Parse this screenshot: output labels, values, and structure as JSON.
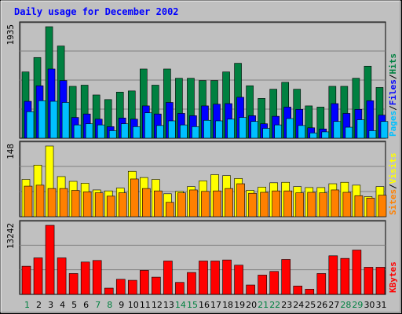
{
  "chart_data": {
    "type": "bar",
    "title": "Daily usage for December 2002",
    "categories": [
      "1",
      "2",
      "3",
      "4",
      "5",
      "6",
      "7",
      "8",
      "9",
      "10",
      "11",
      "12",
      "13",
      "14",
      "15",
      "16",
      "17",
      "18",
      "19",
      "20",
      "21",
      "22",
      "23",
      "24",
      "25",
      "26",
      "27",
      "28",
      "29",
      "30",
      "31"
    ],
    "weekend_days": [
      "1",
      "7",
      "8",
      "14",
      "15",
      "21",
      "22",
      "28",
      "29"
    ],
    "panels": [
      {
        "ymax_label": "1935",
        "ymax": 1935,
        "series": [
          {
            "name": "Hits",
            "color": "#008040",
            "values": [
              1150,
              1400,
              1935,
              1600,
              900,
              920,
              750,
              670,
              800,
              820,
              1200,
              920,
              1200,
              1040,
              1040,
              1000,
              1000,
              1150,
              1300,
              910,
              690,
              850,
              970,
              850,
              560,
              540,
              900,
              900,
              1040,
              1250,
              880
            ]
          },
          {
            "name": "Files",
            "color": "#0000ff",
            "values": [
              640,
              910,
              1200,
              1000,
              360,
              420,
              330,
              200,
              350,
              330,
              560,
              420,
              620,
              430,
              390,
              560,
              590,
              600,
              710,
              390,
              250,
              380,
              540,
              500,
              180,
              160,
              600,
              430,
              500,
              650,
              400
            ]
          },
          {
            "name": "Pages",
            "color": "#00c0ff",
            "values": [
              460,
              650,
              640,
              620,
              230,
              250,
              230,
              130,
              250,
              200,
              440,
              220,
              300,
              230,
              200,
              310,
              300,
              330,
              360,
              290,
              170,
              230,
              340,
              220,
              90,
              110,
              290,
              190,
              320,
              130,
              290
            ]
          }
        ]
      },
      {
        "ymax_label": "148",
        "ymax": 148,
        "series": [
          {
            "name": "Visits",
            "color": "#ffff00",
            "values": [
              78,
              108,
              148,
              84,
              74,
              70,
              56,
              54,
              60,
              95,
              82,
              78,
              48,
              53,
              63,
              75,
              88,
              86,
              80,
              55,
              62,
              71,
              72,
              63,
              61,
              61,
              69,
              72,
              66,
              42,
              63
            ]
          },
          {
            "name": "Sites",
            "color": "#ff8000",
            "values": [
              64,
              66,
              59,
              59,
              55,
              52,
              50,
              43,
              50,
              79,
              59,
              54,
              30,
              50,
              56,
              53,
              54,
              59,
              69,
              49,
              51,
              54,
              54,
              50,
              51,
              50,
              56,
              51,
              44,
              39,
              45
            ]
          }
        ]
      },
      {
        "ymax_label": "13242",
        "ymax": 13242,
        "series": [
          {
            "name": "KBytes",
            "color": "#ff0000",
            "values": [
              5400,
              7000,
              13242,
              7000,
              4000,
              6200,
              6500,
              1200,
              2900,
              2700,
              4600,
              3300,
              6400,
              2300,
              4200,
              6400,
              6400,
              6600,
              5600,
              1800,
              3700,
              4400,
              6700,
              1600,
              1000,
              4000,
              7400,
              6900,
              8500,
              5200,
              5200
            ]
          }
        ]
      }
    ]
  }
}
